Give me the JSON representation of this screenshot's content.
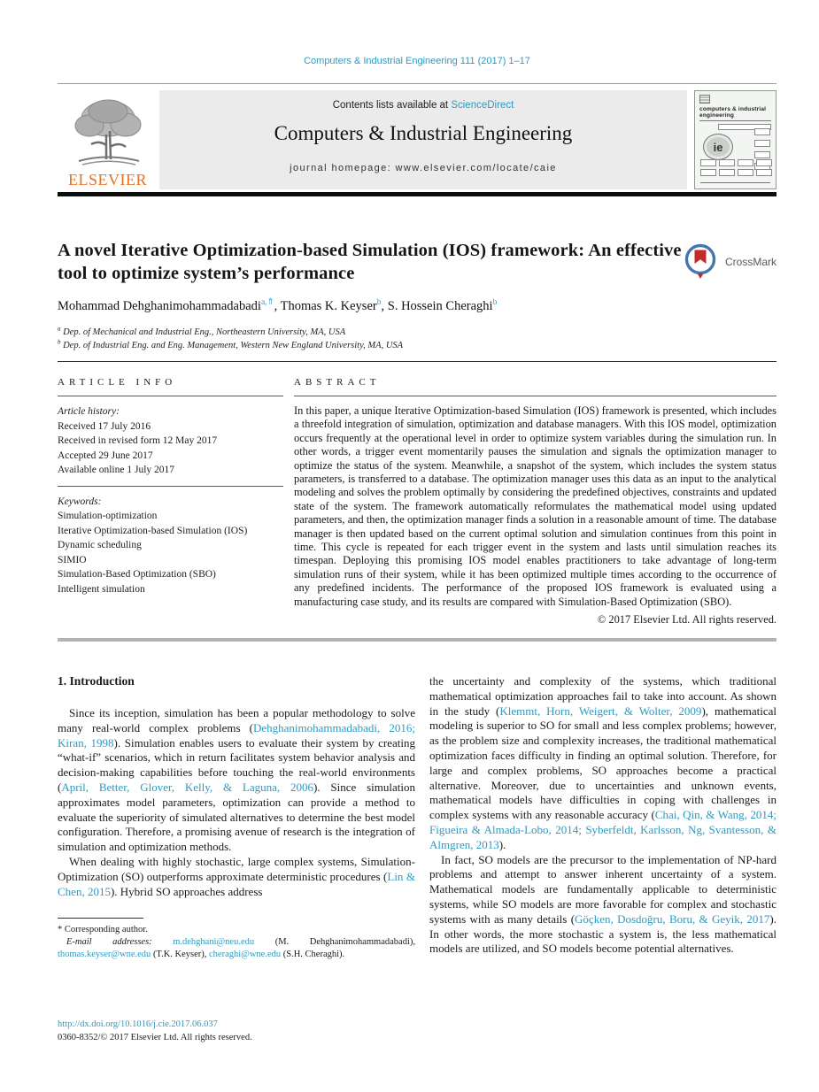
{
  "colors": {
    "link_teal": "#2E9AC0",
    "elsevier_orange": "#E9701E",
    "banner_gray": "#EBEBEB",
    "crossmark_blue": "#4577AE",
    "crossmark_red": "#C42B28",
    "thick_rule_gray": "#B3B3B3"
  },
  "masthead": {
    "journal_ref": "Computers & Industrial Engineering 111 (2017) 1–17",
    "contents_prefix": "Contents lists available at ",
    "sciencedirect": "ScienceDirect",
    "journal_name": "Computers & Industrial Engineering",
    "homepage": "journal homepage: www.elsevier.com/locate/caie",
    "elsevier": "ELSEVIER",
    "cover_title": "computers & industrial engineering",
    "cover_logo": "ie",
    "crossmark": "CrossMark"
  },
  "article": {
    "title": "A novel Iterative Optimization-based Simulation (IOS) framework: An effective tool to optimize system’s performance",
    "authors_line": [
      {
        "t": "Mohammad Dehghanimohammadabadi"
      },
      {
        "t": "a,⇑",
        "c": "sup link",
        "n": "author-affiliation-sup"
      },
      {
        "t": ", Thomas K. Keyser"
      },
      {
        "t": "b",
        "c": "sup link",
        "n": "author-affiliation-sup"
      },
      {
        "t": ", S. Hossein Cheraghi"
      },
      {
        "t": "b",
        "c": "sup link",
        "n": "author-affiliation-sup"
      }
    ],
    "affiliations": [
      {
        "s": [
          {
            "t": "a",
            "c": "sup"
          },
          {
            "t": " Dep. of Mechanical and Industrial Eng., Northeastern University, MA, USA"
          }
        ]
      },
      {
        "s": [
          {
            "t": "b",
            "c": "sup"
          },
          {
            "t": " Dep. of Industrial Eng. and Eng. Management, Western New England University, MA, USA"
          }
        ]
      }
    ]
  },
  "info": {
    "heading": "ARTICLE INFO",
    "history_label": "Article history:",
    "history": [
      "Received 17 July 2016",
      "Received in revised form 12 May 2017",
      "Accepted 29 June 2017",
      "Available online 1 July 2017"
    ],
    "keywords_label": "Keywords:",
    "keywords": [
      "Simulation-optimization",
      "Iterative Optimization-based Simulation (IOS)",
      "Dynamic scheduling",
      "SIMIO",
      "Simulation-Based Optimization (SBO)",
      "Intelligent simulation"
    ]
  },
  "abstract": {
    "heading": "ABSTRACT",
    "text": "In this paper, a unique Iterative Optimization-based Simulation (IOS) framework is presented, which includes a threefold integration of simulation, optimization and database managers. With this IOS model, optimization occurs frequently at the operational level in order to optimize system variables during the simulation run. In other words, a trigger event momentarily pauses the simulation and signals the optimization manager to optimize the status of the system. Meanwhile, a snapshot of the system, which includes the system status parameters, is transferred to a database. The optimization manager uses this data as an input to the analytical modeling and solves the problem optimally by considering the predefined objectives, constraints and updated state of the system. The framework automatically reformulates the mathematical model using updated parameters, and then, the optimization manager finds a solution in a reasonable amount of time. The database manager is then updated based on the current optimal solution and simulation continues from this point in time. This cycle is repeated for each trigger event in the system and lasts until simulation reaches its timespan. Deploying this promising IOS model enables practitioners to take advantage of long-term simulation runs of their system, while it has been optimized multiple times according to the occurrence of any predefined incidents. The performance of the proposed IOS framework is evaluated using a manufacturing case study, and its results are compared with Simulation-Based Optimization (SBO).",
    "copyright": "© 2017 Elsevier Ltd. All rights reserved."
  },
  "intro": {
    "heading": "1. Introduction",
    "col1": [
      {
        "s": [
          {
            "t": "Since its inception, simulation has been a popular methodology to solve many real-world complex problems ("
          },
          {
            "t": "Dehghanimohammadabadi, 2016; Kiran, 1998",
            "c": "link",
            "n": "citation-link"
          },
          {
            "t": "). Simulation enables users to evaluate their system by creating “what-if” scenarios, which in return facilitates system behavior analysis and decision-making capabilities before touching the real-world environments ("
          },
          {
            "t": "April, Better, Glover, Kelly, & Laguna, 2006",
            "c": "link",
            "n": "citation-link"
          },
          {
            "t": "). Since simulation approximates model parameters, optimization can provide a method to evaluate the superiority of simulated alternatives to determine the best model configuration. Therefore, a promising avenue of research is the integration of simulation and optimization methods."
          }
        ]
      },
      {
        "s": [
          {
            "t": "When dealing with highly stochastic, large complex systems, Simulation-Optimization (SO) outperforms approximate deterministic procedures ("
          },
          {
            "t": "Lin & Chen, 2015",
            "c": "link",
            "n": "citation-link"
          },
          {
            "t": "). Hybrid SO approaches address"
          }
        ]
      }
    ],
    "col2": [
      {
        "s": [
          {
            "t": "the uncertainty and complexity of the systems, which traditional mathematical optimization approaches fail to take into account. As shown in the study ("
          },
          {
            "t": "Klemmt, Horn, Weigert, & Wolter, 2009",
            "c": "link",
            "n": "citation-link"
          },
          {
            "t": "), mathematical modeling is superior to SO for small and less complex problems; however, as the problem size and complexity increases, the traditional mathematical optimization faces difficulty in finding an optimal solution. Therefore, for large and complex problems, SO approaches become a practical alternative. Moreover, due to uncertainties and unknown events, mathematical models have difficulties in coping with challenges in complex systems with any reasonable accuracy ("
          },
          {
            "t": "Chai, Qin, & Wang, 2014; Figueira & Almada-Lobo, 2014; Syberfeldt, Karlsson, Ng, Svantesson, & Almgren, 2013",
            "c": "link",
            "n": "citation-link"
          },
          {
            "t": ")."
          }
        ]
      },
      {
        "s": [
          {
            "t": "In fact, SO models are the precursor to the implementation of NP-hard problems and attempt to answer inherent uncertainty of a system. Mathematical models are fundamentally applicable to deterministic systems, while SO models are more favorable for complex and stochastic systems with as many details ("
          },
          {
            "t": "Göçken, Dosdoğru, Boru, & Geyik, 2017",
            "c": "link",
            "n": "citation-link"
          },
          {
            "t": "). In other words, the more stochastic a system is, the less mathematical models are utilized, and SO models become potential alternatives."
          }
        ]
      }
    ]
  },
  "footnote": {
    "line1": [
      {
        "t": "*",
        "n": "footnote-marker"
      },
      {
        "t": " Corresponding author."
      }
    ],
    "line2": [
      {
        "t": "E-mail addresses: ",
        "c": "ilabel"
      },
      {
        "t": "m.dehghani@neu.edu",
        "c": "link",
        "n": "email-link"
      },
      {
        "t": " (M. Dehghanimohammadabadi), "
      },
      {
        "t": "thomas.keyser@wne.edu",
        "c": "link",
        "n": "email-link"
      },
      {
        "t": " (T.K. Keyser), "
      },
      {
        "t": "cheraghi@wne.edu",
        "c": "link",
        "n": "email-link"
      },
      {
        "t": " (S.H. Cheraghi)."
      }
    ]
  },
  "footer": {
    "doi": "http://dx.doi.org/10.1016/j.cie.2017.06.037",
    "issn_line": "0360-8352/© 2017 Elsevier Ltd. All rights reserved."
  }
}
